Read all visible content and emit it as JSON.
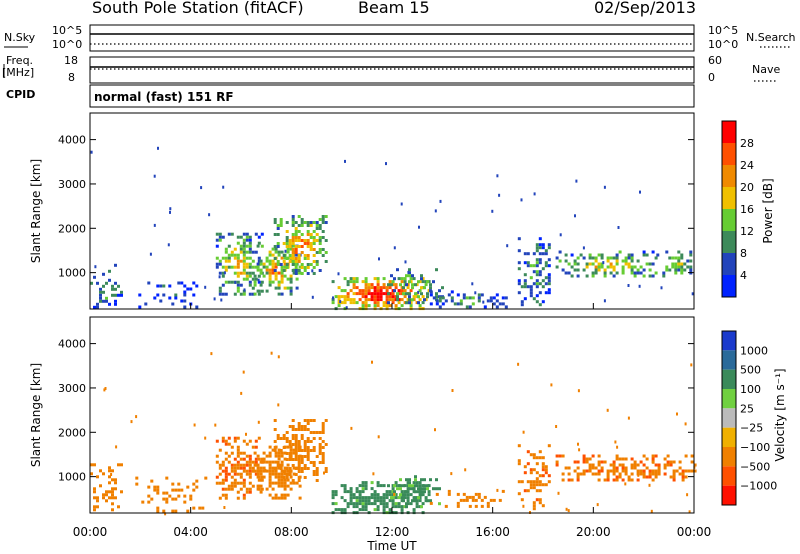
{
  "header": {
    "station": "South Pole Station (fitACF)",
    "beam": "Beam 15",
    "date": "02/Sep/2013"
  },
  "left_labels": {
    "nsky": "N.Sky",
    "nsky_ticks": [
      "10^5",
      "10^0"
    ],
    "freq": "Freq.",
    "freq_unit": "[MHz]",
    "freq_ticks": [
      "18",
      "8"
    ],
    "cpid": "CPID"
  },
  "right_labels": {
    "nsearch": "N.Search",
    "nsearch_ticks": [
      "10^5",
      "10^0"
    ],
    "nave": "Nave",
    "nave_ticks": [
      "60",
      "0"
    ]
  },
  "cpid_text": "normal (fast) 151 RF",
  "colors": {
    "power": [
      "#0022ff",
      "#2244bb",
      "#3d8a5a",
      "#66cc33",
      "#f0c000",
      "#f08a00",
      "#ff5000",
      "#ff0000"
    ],
    "velocity": [
      "#1a3acc",
      "#2a6a9a",
      "#3a8a5a",
      "#70d040",
      "#bbbbbb",
      "#f0b000",
      "#f08000",
      "#ff5000",
      "#ff1000"
    ]
  },
  "chart_data": [
    {
      "type": "heatmap",
      "name": "power",
      "ylabel": "Slant Range [km]",
      "yticks": [
        1000,
        2000,
        3000,
        4000
      ],
      "ylim": [
        180,
        4600
      ],
      "xlim": [
        0,
        24
      ],
      "colorbar": {
        "label": "Power [dB]",
        "ticks": [
          4,
          8,
          12,
          16,
          20,
          24,
          28
        ],
        "range": [
          0,
          32
        ]
      },
      "blobs": [
        {
          "t": [
            0.0,
            1.3
          ],
          "r": [
            200,
            1200
          ],
          "v": 9,
          "d": 0.5
        },
        {
          "t": [
            1.8,
            4.6
          ],
          "r": [
            250,
            800
          ],
          "v": 7,
          "d": 0.3
        },
        {
          "t": [
            5.0,
            6.8
          ],
          "r": [
            500,
            1900
          ],
          "v": 16,
          "d": 0.75
        },
        {
          "t": [
            6.5,
            8.3
          ],
          "r": [
            500,
            1700
          ],
          "v": 19,
          "d": 0.8
        },
        {
          "t": [
            7.3,
            9.4
          ],
          "r": [
            1000,
            2300
          ],
          "v": 20,
          "d": 0.8
        },
        {
          "t": [
            9.6,
            13.5
          ],
          "r": [
            200,
            900
          ],
          "v": 28,
          "d": 0.98
        },
        {
          "t": [
            11.8,
            14.0
          ],
          "r": [
            300,
            1100
          ],
          "v": 12,
          "d": 0.6
        },
        {
          "t": [
            13.5,
            16.5
          ],
          "r": [
            200,
            600
          ],
          "v": 9,
          "d": 0.55
        },
        {
          "t": [
            17.0,
            18.3
          ],
          "r": [
            300,
            1800
          ],
          "v": 10,
          "d": 0.55
        },
        {
          "t": [
            18.5,
            22.5
          ],
          "r": [
            900,
            1500
          ],
          "v": 16,
          "d": 0.7
        },
        {
          "t": [
            22.5,
            24.0
          ],
          "r": [
            900,
            1500
          ],
          "v": 13,
          "d": 0.65
        }
      ]
    },
    {
      "type": "heatmap",
      "name": "velocity",
      "ylabel": "Slant Range [km]",
      "xlabel": "Time UT",
      "xticks": [
        "00:00",
        "04:00",
        "08:00",
        "12:00",
        "16:00",
        "20:00",
        "00:00"
      ],
      "yticks": [
        1000,
        2000,
        3000,
        4000
      ],
      "ylim": [
        180,
        4600
      ],
      "xlim": [
        0,
        24
      ],
      "colorbar": {
        "label": "Velocity [m s⁻¹]",
        "ticks": [
          "1000",
          "500",
          "100",
          "25",
          "−25",
          "−100",
          "−500",
          "−1000"
        ]
      },
      "blobs": [
        {
          "t": [
            0.0,
            1.3
          ],
          "r": [
            200,
            1300
          ],
          "v": -200,
          "d": 0.45
        },
        {
          "t": [
            1.8,
            4.6
          ],
          "r": [
            200,
            1000
          ],
          "v": -120,
          "d": 0.3
        },
        {
          "t": [
            5.0,
            6.8
          ],
          "r": [
            500,
            1900
          ],
          "v": -250,
          "d": 0.75
        },
        {
          "t": [
            6.5,
            8.3
          ],
          "r": [
            500,
            1700
          ],
          "v": -200,
          "d": 0.8
        },
        {
          "t": [
            7.3,
            9.4
          ],
          "r": [
            900,
            2300
          ],
          "v": -150,
          "d": 0.75
        },
        {
          "t": [
            9.6,
            13.5
          ],
          "r": [
            200,
            900
          ],
          "v": 100,
          "d": 0.95
        },
        {
          "t": [
            11.8,
            14.0
          ],
          "r": [
            300,
            1100
          ],
          "v": 80,
          "d": 0.55
        },
        {
          "t": [
            13.5,
            16.5
          ],
          "r": [
            300,
            700
          ],
          "v": -150,
          "d": 0.5
        },
        {
          "t": [
            17.0,
            18.3
          ],
          "r": [
            300,
            1800
          ],
          "v": -250,
          "d": 0.5
        },
        {
          "t": [
            18.5,
            24.0
          ],
          "r": [
            900,
            1500
          ],
          "v": -250,
          "d": 0.7
        }
      ]
    }
  ]
}
